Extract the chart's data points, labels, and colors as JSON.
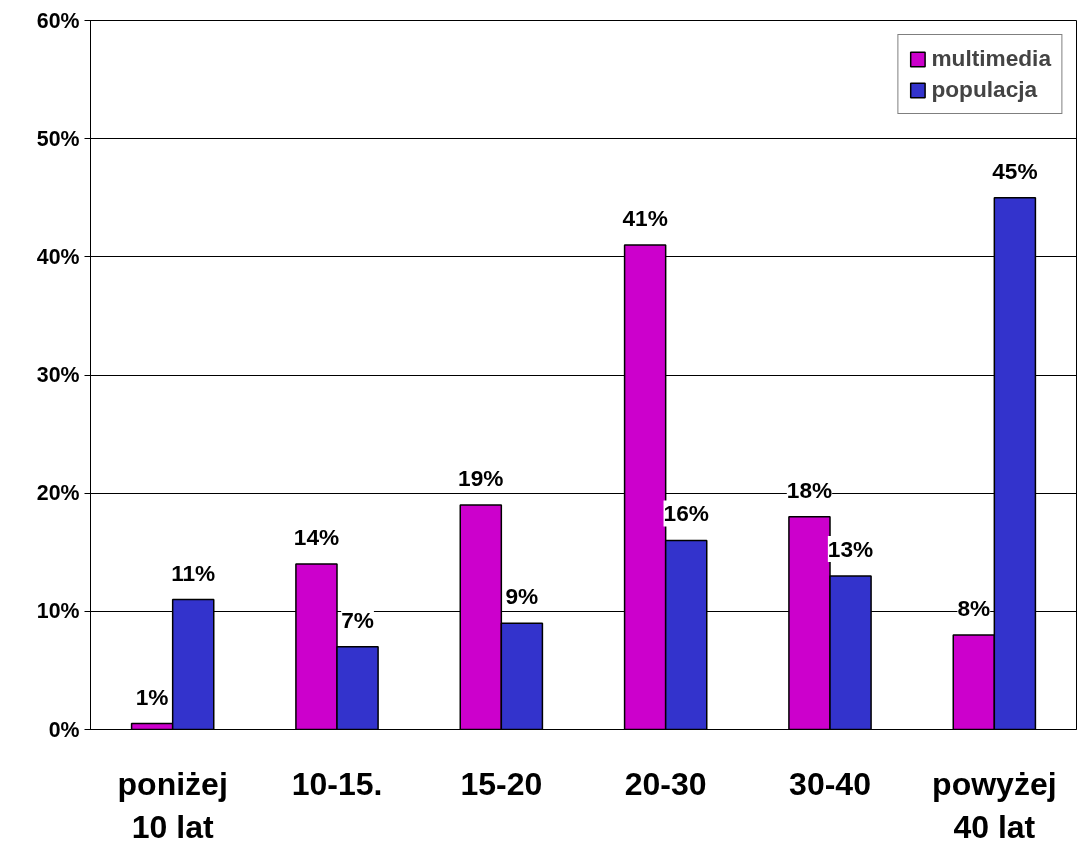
{
  "chart_data": {
    "type": "bar",
    "categories": [
      "poniżej\n10 lat",
      "10-15.",
      "15-20",
      "20-30",
      "30-40",
      "powyżej\n40 lat"
    ],
    "series": [
      {
        "name": "multimedia",
        "color": "#cc00cc",
        "values": [
          0.5,
          14,
          19,
          41,
          18,
          8
        ],
        "value_labels": [
          "1%",
          "14%",
          "19%",
          "41%",
          "18%",
          "8%"
        ]
      },
      {
        "name": "populacja",
        "color": "#3333cc",
        "values": [
          11,
          7,
          9,
          16,
          13,
          45
        ],
        "value_labels": [
          "11%",
          "7%",
          "9%",
          "16%",
          "13%",
          "45%"
        ]
      }
    ],
    "ylim": [
      0,
      60
    ],
    "yticks": [
      {
        "value": 0,
        "label": "0%"
      },
      {
        "value": 10,
        "label": "10%"
      },
      {
        "value": 20,
        "label": "20%"
      },
      {
        "value": 30,
        "label": "30%"
      },
      {
        "value": 40,
        "label": "40%"
      },
      {
        "value": 50,
        "label": "50%"
      },
      {
        "value": 60,
        "label": "60%"
      }
    ],
    "grid": "y",
    "legend": "top right"
  }
}
